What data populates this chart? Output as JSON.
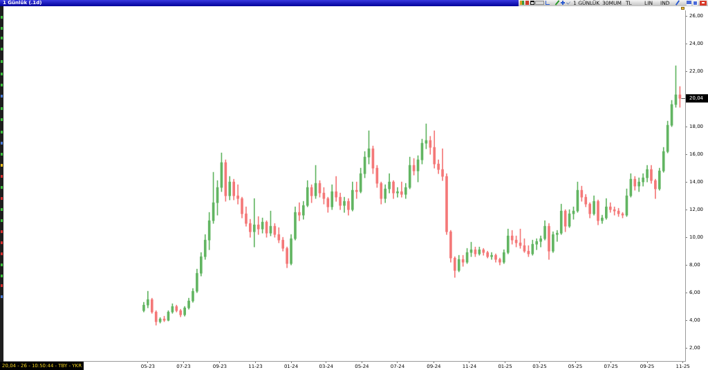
{
  "chart_data": {
    "type": "candlestick",
    "title": "1 Günlük (.1d)",
    "x": [
      "2023-04-24",
      "2023-05-01",
      "2023-05-08",
      "2023-05-15",
      "2023-05-22",
      "2023-05-29",
      "2023-06-05",
      "2023-06-12",
      "2023-06-19",
      "2023-06-26",
      "2023-07-03",
      "2023-07-10",
      "2023-07-17",
      "2023-07-24",
      "2023-07-31",
      "2023-08-07",
      "2023-08-14",
      "2023-08-21",
      "2023-08-28",
      "2023-09-04",
      "2023-09-11",
      "2023-09-18",
      "2023-09-25",
      "2023-10-02",
      "2023-10-09",
      "2023-10-16",
      "2023-10-23",
      "2023-10-30",
      "2023-11-06",
      "2023-11-13",
      "2023-11-20",
      "2023-11-27",
      "2023-12-04",
      "2023-12-11",
      "2023-12-18",
      "2023-12-25",
      "2024-01-01",
      "2024-01-08",
      "2024-01-15",
      "2024-01-22",
      "2024-01-29",
      "2024-02-05",
      "2024-02-12",
      "2024-02-19",
      "2024-02-26",
      "2024-03-04",
      "2024-03-11",
      "2024-03-18",
      "2024-03-25",
      "2024-04-01",
      "2024-04-08",
      "2024-04-15",
      "2024-04-22",
      "2024-04-29",
      "2024-05-06",
      "2024-05-13",
      "2024-05-20",
      "2024-05-27",
      "2024-06-03",
      "2024-06-10",
      "2024-06-17",
      "2024-06-24",
      "2024-07-01",
      "2024-07-08",
      "2024-07-15",
      "2024-07-22",
      "2024-07-29",
      "2024-08-05",
      "2024-08-12",
      "2024-08-19",
      "2024-08-26",
      "2024-09-02",
      "2024-09-09",
      "2024-09-16",
      "2024-09-23",
      "2024-09-30",
      "2024-10-07",
      "2024-10-14",
      "2024-10-21",
      "2024-10-28",
      "2024-11-04",
      "2024-11-11",
      "2024-11-18",
      "2024-11-25",
      "2024-12-02",
      "2024-12-09",
      "2024-12-16",
      "2024-12-23",
      "2024-12-30",
      "2025-01-06",
      "2025-01-13",
      "2025-01-20",
      "2025-01-27",
      "2025-02-03",
      "2025-02-10",
      "2025-02-17",
      "2025-02-24",
      "2025-03-03",
      "2025-03-10",
      "2025-03-17",
      "2025-03-24",
      "2025-03-31",
      "2025-04-07",
      "2025-04-14",
      "2025-04-21",
      "2025-04-28",
      "2025-05-05",
      "2025-05-12",
      "2025-05-19",
      "2025-05-26",
      "2025-06-02",
      "2025-06-09",
      "2025-06-16",
      "2025-06-23",
      "2025-06-30",
      "2025-07-07",
      "2025-07-14",
      "2025-07-21",
      "2025-07-28",
      "2025-08-04",
      "2025-08-11",
      "2025-08-18",
      "2025-08-25",
      "2025-09-01",
      "2025-09-08",
      "2025-09-15",
      "2025-09-22",
      "2025-09-29",
      "2025-10-06",
      "2025-10-13",
      "2025-10-20",
      "2025-10-27"
    ],
    "ohlc": [
      [
        4.7,
        5.3,
        4.6,
        5.1
      ],
      [
        5.1,
        6.1,
        4.9,
        5.5
      ],
      [
        5.5,
        5.6,
        4.5,
        4.6
      ],
      [
        4.6,
        4.7,
        3.65,
        3.9
      ],
      [
        3.9,
        4.2,
        3.8,
        4.1
      ],
      [
        4.1,
        4.3,
        3.9,
        4.0
      ],
      [
        4.0,
        4.7,
        3.95,
        4.6
      ],
      [
        4.6,
        5.2,
        4.5,
        5.0
      ],
      [
        5.0,
        5.1,
        4.6,
        4.7
      ],
      [
        4.7,
        4.8,
        4.25,
        4.4
      ],
      [
        4.4,
        5.0,
        4.3,
        4.9
      ],
      [
        4.9,
        5.6,
        4.8,
        5.4
      ],
      [
        5.4,
        6.3,
        5.3,
        6.1
      ],
      [
        6.1,
        7.7,
        6.0,
        7.4
      ],
      [
        7.4,
        8.9,
        7.2,
        8.6
      ],
      [
        8.6,
        10.2,
        8.4,
        9.8
      ],
      [
        9.8,
        11.8,
        9.1,
        11.2
      ],
      [
        11.2,
        14.7,
        11.0,
        12.5
      ],
      [
        12.5,
        14.1,
        11.6,
        13.6
      ],
      [
        13.6,
        16.1,
        13.3,
        15.4
      ],
      [
        15.4,
        15.6,
        12.6,
        13.0
      ],
      [
        13.0,
        14.4,
        12.7,
        14.0
      ],
      [
        14.0,
        14.2,
        12.7,
        13.0
      ],
      [
        13.0,
        13.8,
        12.4,
        12.8
      ],
      [
        12.8,
        12.9,
        11.4,
        11.7
      ],
      [
        11.7,
        12.2,
        10.8,
        11.0
      ],
      [
        11.0,
        11.3,
        10.0,
        10.4
      ],
      [
        10.4,
        12.8,
        9.3,
        10.9
      ],
      [
        10.9,
        11.5,
        10.2,
        10.6
      ],
      [
        10.6,
        11.4,
        10.3,
        11.1
      ],
      [
        11.1,
        11.2,
        10.0,
        10.3
      ],
      [
        10.3,
        11.9,
        10.1,
        10.8
      ],
      [
        10.8,
        11.0,
        10.0,
        10.2
      ],
      [
        10.2,
        10.7,
        9.6,
        9.8
      ],
      [
        9.8,
        10.0,
        9.0,
        9.2
      ],
      [
        9.2,
        9.3,
        7.8,
        8.1
      ],
      [
        8.1,
        10.2,
        8.0,
        9.9
      ],
      [
        9.9,
        12.2,
        9.8,
        11.8
      ],
      [
        11.8,
        12.5,
        11.2,
        11.6
      ],
      [
        11.6,
        12.6,
        11.3,
        12.3
      ],
      [
        12.3,
        14.1,
        12.2,
        13.6
      ],
      [
        13.6,
        13.8,
        12.5,
        13.0
      ],
      [
        13.0,
        15.2,
        12.8,
        13.9
      ],
      [
        13.9,
        14.1,
        12.9,
        13.2
      ],
      [
        13.2,
        13.6,
        12.4,
        12.8
      ],
      [
        12.8,
        12.9,
        11.8,
        12.2
      ],
      [
        12.2,
        13.8,
        12.0,
        13.3
      ],
      [
        13.3,
        14.4,
        12.6,
        12.9
      ],
      [
        12.9,
        13.2,
        12.0,
        12.3
      ],
      [
        12.3,
        12.9,
        11.8,
        12.6
      ],
      [
        12.6,
        12.8,
        11.6,
        12.0
      ],
      [
        12.0,
        14.0,
        11.9,
        13.4
      ],
      [
        13.4,
        14.0,
        12.8,
        13.3
      ],
      [
        13.3,
        15.0,
        13.2,
        14.6
      ],
      [
        14.6,
        16.2,
        14.3,
        15.8
      ],
      [
        15.8,
        17.7,
        15.3,
        16.4
      ],
      [
        16.4,
        16.6,
        14.6,
        15.0
      ],
      [
        15.0,
        15.2,
        13.6,
        13.9
      ],
      [
        13.9,
        14.0,
        12.4,
        12.8
      ],
      [
        12.8,
        13.8,
        12.5,
        13.5
      ],
      [
        13.5,
        14.6,
        13.2,
        14.0
      ],
      [
        14.0,
        14.1,
        12.8,
        13.2
      ],
      [
        13.2,
        13.6,
        12.9,
        13.3
      ],
      [
        13.3,
        14.0,
        12.9,
        13.1
      ],
      [
        13.1,
        13.9,
        12.8,
        13.6
      ],
      [
        13.6,
        15.8,
        13.5,
        15.2
      ],
      [
        15.2,
        15.7,
        14.5,
        14.8
      ],
      [
        14.8,
        15.9,
        14.0,
        15.6
      ],
      [
        15.6,
        17.1,
        15.3,
        16.8
      ],
      [
        16.8,
        18.2,
        16.4,
        17.0
      ],
      [
        17.0,
        17.3,
        16.0,
        16.5
      ],
      [
        16.5,
        17.7,
        15.0,
        15.3
      ],
      [
        15.3,
        15.6,
        14.6,
        14.9
      ],
      [
        14.9,
        16.4,
        14.1,
        14.4
      ],
      [
        14.4,
        14.6,
        10.2,
        10.4
      ],
      [
        10.4,
        10.5,
        8.2,
        8.5
      ],
      [
        8.5,
        8.6,
        7.1,
        7.6
      ],
      [
        7.6,
        8.7,
        7.5,
        8.4
      ],
      [
        8.4,
        8.7,
        7.9,
        8.2
      ],
      [
        8.2,
        9.2,
        8.1,
        8.9
      ],
      [
        8.9,
        9.65,
        8.6,
        9.1
      ],
      [
        9.1,
        9.3,
        8.6,
        8.8
      ],
      [
        8.8,
        9.3,
        8.7,
        9.1
      ],
      [
        9.1,
        9.2,
        8.7,
        8.9
      ],
      [
        8.9,
        9.0,
        8.5,
        8.6
      ],
      [
        8.6,
        8.9,
        8.4,
        8.7
      ],
      [
        8.7,
        8.8,
        8.2,
        8.4
      ],
      [
        8.4,
        8.5,
        8.0,
        8.2
      ],
      [
        8.2,
        9.1,
        8.1,
        8.9
      ],
      [
        8.9,
        10.6,
        8.8,
        10.1
      ],
      [
        10.1,
        10.5,
        9.5,
        9.8
      ],
      [
        9.8,
        10.1,
        9.3,
        9.6
      ],
      [
        9.6,
        10.6,
        9.2,
        9.4
      ],
      [
        9.4,
        9.9,
        8.9,
        9.0
      ],
      [
        9.0,
        9.4,
        8.6,
        8.8
      ],
      [
        8.8,
        9.8,
        8.7,
        9.5
      ],
      [
        9.5,
        9.9,
        9.1,
        9.7
      ],
      [
        9.7,
        10.1,
        9.3,
        9.9
      ],
      [
        9.9,
        11.2,
        9.8,
        10.8
      ],
      [
        10.8,
        11.0,
        8.4,
        9.0
      ],
      [
        9.0,
        10.4,
        8.9,
        10.2
      ],
      [
        10.2,
        10.5,
        9.7,
        10.3
      ],
      [
        10.3,
        12.4,
        10.2,
        11.9
      ],
      [
        11.9,
        12.0,
        10.4,
        10.8
      ],
      [
        10.8,
        12.0,
        10.7,
        11.7
      ],
      [
        11.7,
        12.2,
        11.3,
        11.9
      ],
      [
        11.9,
        14.0,
        11.8,
        13.4
      ],
      [
        13.4,
        13.7,
        12.6,
        12.9
      ],
      [
        12.9,
        13.1,
        12.2,
        12.4
      ],
      [
        12.4,
        12.5,
        11.4,
        11.7
      ],
      [
        11.7,
        13.0,
        11.6,
        12.6
      ],
      [
        12.6,
        12.7,
        10.9,
        11.2
      ],
      [
        11.2,
        11.6,
        11.0,
        11.4
      ],
      [
        11.4,
        12.8,
        11.3,
        12.2
      ],
      [
        12.2,
        12.5,
        11.8,
        12.0
      ],
      [
        12.0,
        12.2,
        11.6,
        11.9
      ],
      [
        11.9,
        12.1,
        11.5,
        11.7
      ],
      [
        11.7,
        11.8,
        11.4,
        11.6
      ],
      [
        11.6,
        13.5,
        11.5,
        13.0
      ],
      [
        13.0,
        14.6,
        12.9,
        14.2
      ],
      [
        14.2,
        14.4,
        13.4,
        13.7
      ],
      [
        13.7,
        14.3,
        13.3,
        14.0
      ],
      [
        14.0,
        14.6,
        13.7,
        14.3
      ],
      [
        14.3,
        15.2,
        14.0,
        14.9
      ],
      [
        14.9,
        15.2,
        13.9,
        14.1
      ],
      [
        14.1,
        14.2,
        12.8,
        13.5
      ],
      [
        13.5,
        15.0,
        13.4,
        14.8
      ],
      [
        14.8,
        16.5,
        14.7,
        16.2
      ],
      [
        16.2,
        18.4,
        16.1,
        18.1
      ],
      [
        18.1,
        19.9,
        18.0,
        19.6
      ],
      [
        19.6,
        22.4,
        19.4,
        20.3
      ],
      [
        20.3,
        20.9,
        19.4,
        20.04
      ]
    ],
    "colors": [
      "#62b562",
      "#62b562",
      "#f47878",
      "#f47878",
      "#62b562",
      "#f47878",
      "#62b562",
      "#62b562",
      "#f47878",
      "#f47878",
      "#62b562",
      "#62b562",
      "#62b562",
      "#62b562",
      "#62b562",
      "#62b562",
      "#62b562",
      "#62b562",
      "#62b562",
      "#62b562",
      "#f47878",
      "#62b562",
      "#f47878",
      "#f47878",
      "#f47878",
      "#f47878",
      "#f47878",
      "#62b562",
      "#f47878",
      "#62b562",
      "#f47878",
      "#62b562",
      "#f47878",
      "#f47878",
      "#f47878",
      "#f47878",
      "#62b562",
      "#62b562",
      "#f47878",
      "#62b562",
      "#62b562",
      "#f47878",
      "#62b562",
      "#f47878",
      "#f47878",
      "#f47878",
      "#62b562",
      "#f47878",
      "#f47878",
      "#62b562",
      "#f47878",
      "#62b562",
      "#f47878",
      "#62b562",
      "#62b562",
      "#62b562",
      "#f47878",
      "#f47878",
      "#f47878",
      "#62b562",
      "#62b562",
      "#f47878",
      "#62b562",
      "#f47878",
      "#62b562",
      "#62b562",
      "#f47878",
      "#62b562",
      "#62b562",
      "#62b562",
      "#f47878",
      "#f47878",
      "#f47878",
      "#f47878",
      "#f47878",
      "#f47878",
      "#f47878",
      "#62b562",
      "#f47878",
      "#62b562",
      "#62b562",
      "#f47878",
      "#62b562",
      "#f47878",
      "#f47878",
      "#62b562",
      "#f47878",
      "#f47878",
      "#62b562",
      "#62b562",
      "#f47878",
      "#f47878",
      "#f47878",
      "#f47878",
      "#f47878",
      "#62b562",
      "#62b562",
      "#62b562",
      "#62b562",
      "#f47878",
      "#62b562",
      "#62b562",
      "#62b562",
      "#f47878",
      "#62b562",
      "#62b562",
      "#62b562",
      "#f47878",
      "#f47878",
      "#f47878",
      "#62b562",
      "#f47878",
      "#62b562",
      "#62b562",
      "#f47878",
      "#f47878",
      "#f47878",
      "#f47878",
      "#62b562",
      "#62b562",
      "#f47878",
      "#62b562",
      "#62b562",
      "#62b562",
      "#f47878",
      "#f47878",
      "#62b562",
      "#62b562",
      "#62b562",
      "#62b562",
      "#62b562",
      "#f47878"
    ],
    "xlim": [
      "2022-08-27",
      "2025-11-05"
    ],
    "xticks": [
      {
        "value": "2023-05-01",
        "label": "05-23"
      },
      {
        "value": "2023-07-01",
        "label": "07-23"
      },
      {
        "value": "2023-09-01",
        "label": "09-23"
      },
      {
        "value": "2023-11-01",
        "label": "11-23"
      },
      {
        "value": "2024-01-01",
        "label": "01-24"
      },
      {
        "value": "2024-03-01",
        "label": "03-24"
      },
      {
        "value": "2024-05-01",
        "label": "05-24"
      },
      {
        "value": "2024-07-01",
        "label": "07-24"
      },
      {
        "value": "2024-09-01",
        "label": "09-24"
      },
      {
        "value": "2024-11-01",
        "label": "11-24"
      },
      {
        "value": "2025-01-01",
        "label": "01-25"
      },
      {
        "value": "2025-03-01",
        "label": "03-25"
      },
      {
        "value": "2025-05-01",
        "label": "05-25"
      },
      {
        "value": "2025-07-01",
        "label": "07-25"
      },
      {
        "value": "2025-09-01",
        "label": "09-25"
      },
      {
        "value": "2025-11-01",
        "label": "11-25"
      }
    ],
    "ylim": [
      1.06,
      26.39
    ],
    "yticks": [
      {
        "value": 2,
        "label": "2,00"
      },
      {
        "value": 4,
        "label": "4,00"
      },
      {
        "value": 6,
        "label": "6,00"
      },
      {
        "value": 8,
        "label": "8,00"
      },
      {
        "value": 10,
        "label": "10,00"
      },
      {
        "value": 12,
        "label": "12,00"
      },
      {
        "value": 14,
        "label": "14,00"
      },
      {
        "value": 16,
        "label": "16,00"
      },
      {
        "value": 18,
        "label": "18,00"
      },
      {
        "value": 22,
        "label": "22,00"
      },
      {
        "value": 24,
        "label": "24,00"
      },
      {
        "value": 26,
        "label": "26,00"
      }
    ],
    "annotations": [
      "1 GÜNLÜK",
      "30MUM",
      "TL",
      "LIN",
      "IND",
      "20,04 - 26 - 10:50:44 - TBY - YKR",
      {
        "text": "20,04",
        "x": "2025-10-27",
        "y": 20.04
      }
    ]
  }
}
